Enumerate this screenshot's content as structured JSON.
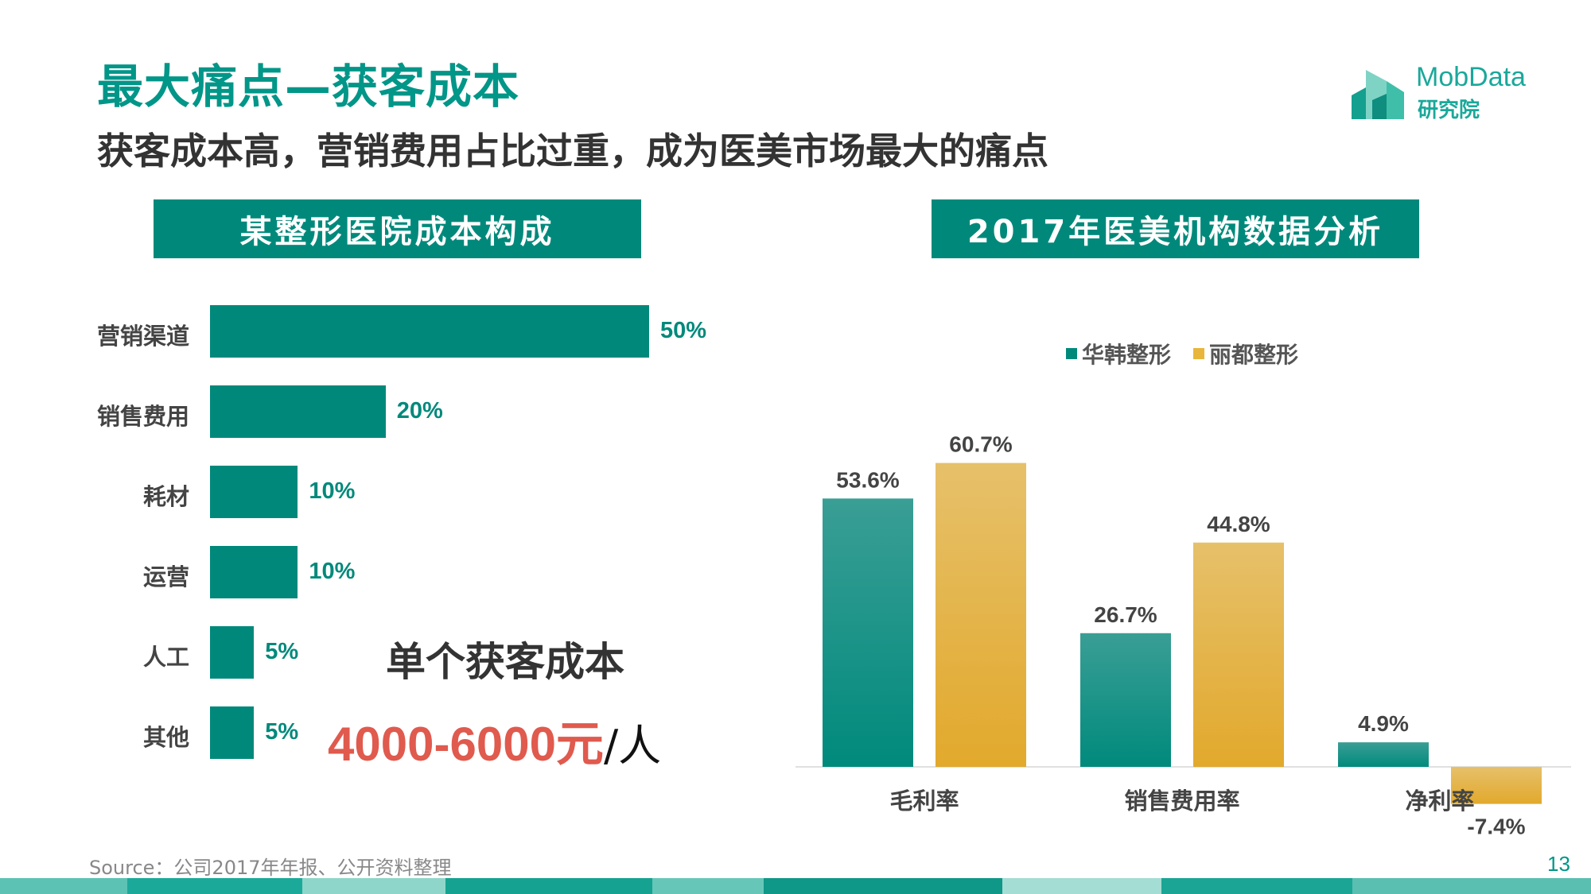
{
  "header": {
    "title": "最大痛点—获客成本",
    "subtitle": "获客成本高，营销费用占比过重，成为医美市场最大的痛点",
    "logo_name": "MobData",
    "logo_sub": "研究院"
  },
  "left_panel": {
    "title": "某整形医院成本构成",
    "highlight_label": "单个获客成本",
    "highlight_value": "4000-6000元",
    "highlight_unit": "/人"
  },
  "right_panel": {
    "title": "2017年医美机构数据分析"
  },
  "footer": {
    "source": "Source：公司2017年年报、公开资料整理",
    "page_number": "13"
  },
  "colors": {
    "teal": "#00897b",
    "gold": "#e8b63c",
    "red": "#e05a4e"
  },
  "chart_data": [
    {
      "type": "bar",
      "orientation": "horizontal",
      "categories": [
        "营销渠道",
        "销售费用",
        "耗材",
        "运营",
        "人工",
        "其他"
      ],
      "values": [
        50,
        20,
        10,
        10,
        5,
        5
      ],
      "value_labels": [
        "50%",
        "20%",
        "10%",
        "10%",
        "5%",
        "5%"
      ],
      "xlim": [
        0,
        50
      ]
    },
    {
      "type": "bar",
      "orientation": "vertical",
      "categories": [
        "毛利率",
        "销售费用率",
        "净利率"
      ],
      "series": [
        {
          "name": "华韩整形",
          "values": [
            53.6,
            26.7,
            4.9
          ],
          "labels": [
            "53.6%",
            "26.7%",
            "4.9%"
          ],
          "color": "#00897b"
        },
        {
          "name": "丽都整形",
          "values": [
            60.7,
            44.8,
            -7.4
          ],
          "labels": [
            "60.7%",
            "44.8%",
            "-7.4%"
          ],
          "color": "#e8b63c"
        }
      ],
      "legend": "top-center",
      "grid": false
    }
  ]
}
